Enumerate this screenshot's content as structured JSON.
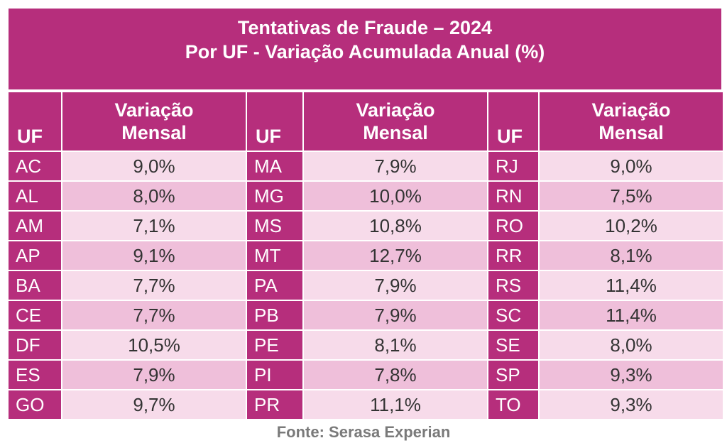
{
  "header": {
    "title_line1": "Tentativas de Fraude – 2024",
    "title_line2": "Por UF - Variação Acumulada Anual (%)"
  },
  "columns": {
    "uf": "UF",
    "var_line1": "Variação",
    "var_line2": "Mensal"
  },
  "source": "Fonte: Serasa Experian",
  "colors": {
    "header_bg": "#b62e7c",
    "row_light": "#f7dbea",
    "row_dark": "#efbfda"
  },
  "chart_data": {
    "type": "table",
    "title": "Tentativas de Fraude – 2024",
    "subtitle": "Por UF - Variação Acumulada Anual (%)",
    "columns": [
      "UF",
      "Variação Mensal"
    ],
    "groups": [
      [
        {
          "uf": "AC",
          "value": "9,0%"
        },
        {
          "uf": "AL",
          "value": "8,0%"
        },
        {
          "uf": "AM",
          "value": "7,1%"
        },
        {
          "uf": "AP",
          "value": "9,1%"
        },
        {
          "uf": "BA",
          "value": "7,7%"
        },
        {
          "uf": "CE",
          "value": "7,7%"
        },
        {
          "uf": "DF",
          "value": "10,5%"
        },
        {
          "uf": "ES",
          "value": "7,9%"
        },
        {
          "uf": "GO",
          "value": "9,7%"
        }
      ],
      [
        {
          "uf": "MA",
          "value": "7,9%"
        },
        {
          "uf": "MG",
          "value": "10,0%"
        },
        {
          "uf": "MS",
          "value": "10,8%"
        },
        {
          "uf": "MT",
          "value": "12,7%"
        },
        {
          "uf": "PA",
          "value": "7,9%"
        },
        {
          "uf": "PB",
          "value": "7,9%"
        },
        {
          "uf": "PE",
          "value": "8,1%"
        },
        {
          "uf": "PI",
          "value": "7,8%"
        },
        {
          "uf": "PR",
          "value": "11,1%"
        }
      ],
      [
        {
          "uf": "RJ",
          "value": "9,0%"
        },
        {
          "uf": "RN",
          "value": "7,5%"
        },
        {
          "uf": "RO",
          "value": "10,2%"
        },
        {
          "uf": "RR",
          "value": "8,1%"
        },
        {
          "uf": "RS",
          "value": "11,4%"
        },
        {
          "uf": "SC",
          "value": "11,4%"
        },
        {
          "uf": "SE",
          "value": "8,0%"
        },
        {
          "uf": "SP",
          "value": "9,3%"
        },
        {
          "uf": "TO",
          "value": "9,3%"
        }
      ]
    ]
  }
}
